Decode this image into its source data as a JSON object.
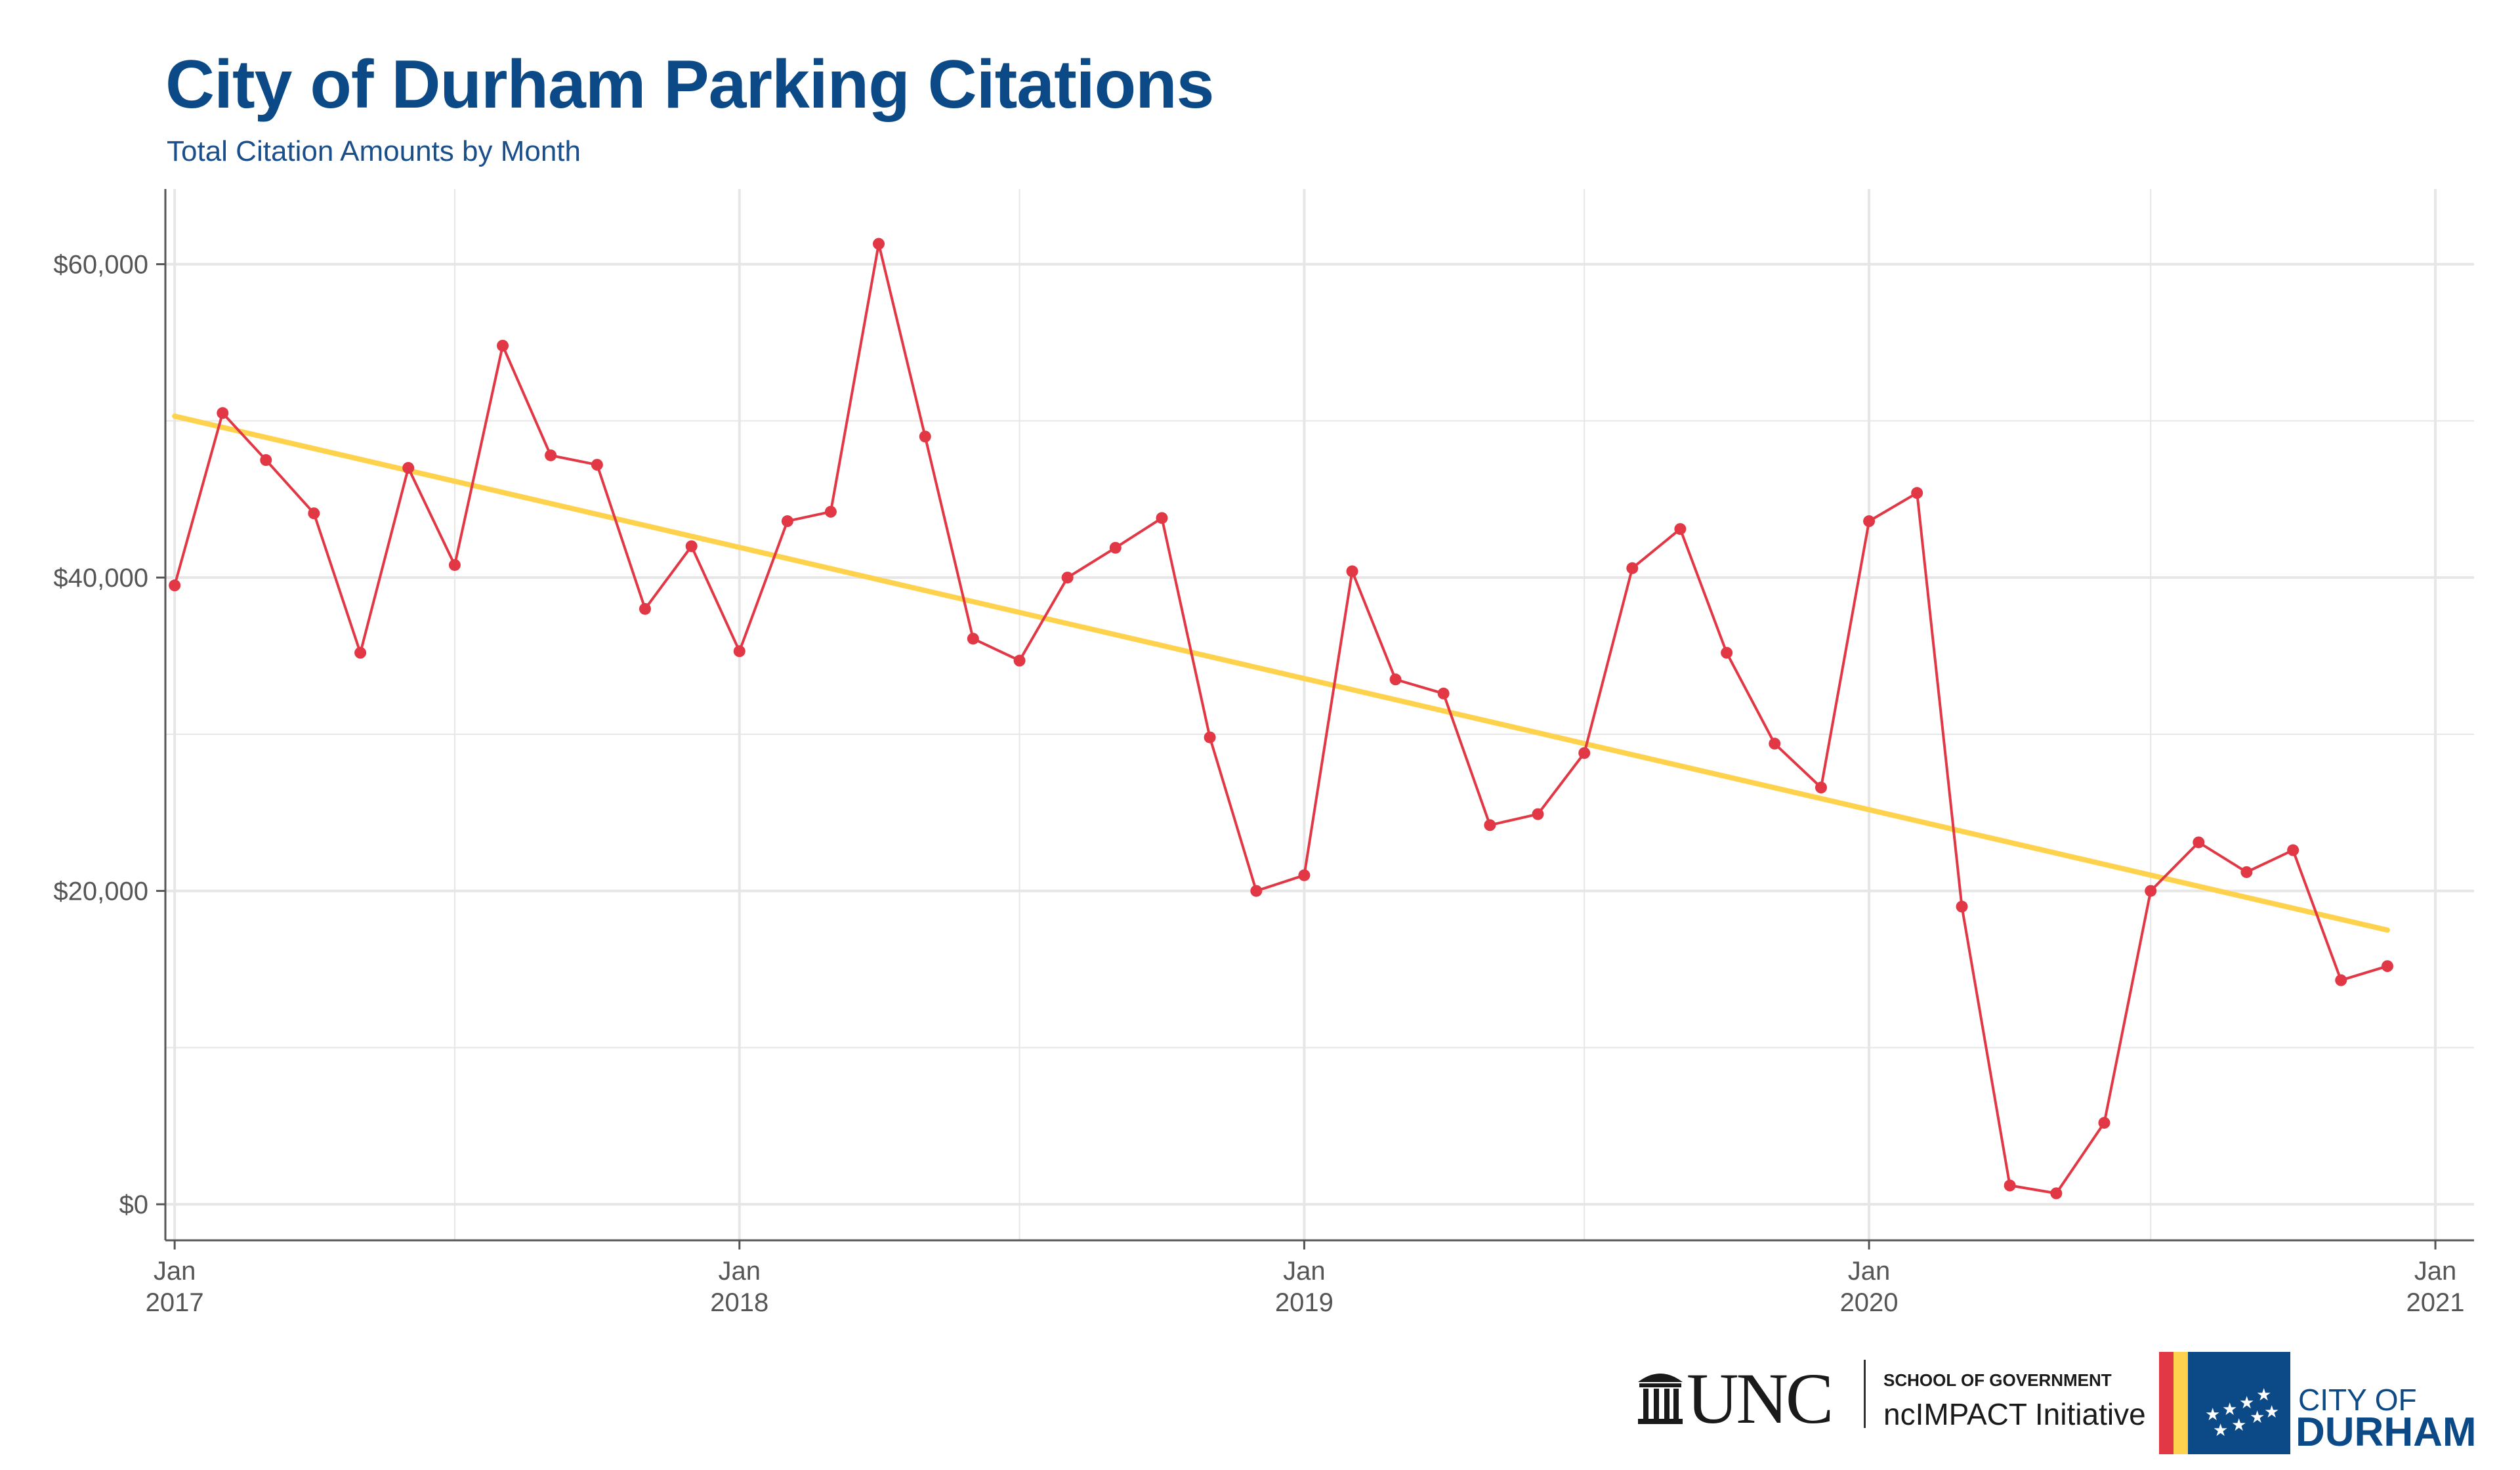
{
  "header": {
    "title": "City of Durham Parking Citations",
    "subtitle": "Total Citation Amounts by Month"
  },
  "colors": {
    "title": "#0b4a86",
    "series": "#e23744",
    "trend": "#ffd24d",
    "grid": "#e6e6e6"
  },
  "chart_data": {
    "type": "line",
    "title": "City of Durham Parking Citations",
    "subtitle": "Total Citation Amounts by Month",
    "xlabel": "",
    "ylabel": "",
    "x": [
      "2017-01",
      "2017-02",
      "2017-03",
      "2017-04",
      "2017-05",
      "2017-06",
      "2017-07",
      "2017-08",
      "2017-09",
      "2017-10",
      "2017-11",
      "2017-12",
      "2018-01",
      "2018-02",
      "2018-03",
      "2018-04",
      "2018-05",
      "2018-06",
      "2018-07",
      "2018-08",
      "2018-09",
      "2018-10",
      "2018-11",
      "2018-12",
      "2019-01",
      "2019-02",
      "2019-03",
      "2019-04",
      "2019-05",
      "2019-06",
      "2019-07",
      "2019-08",
      "2019-09",
      "2019-10",
      "2019-11",
      "2019-12",
      "2020-01",
      "2020-02",
      "2020-03",
      "2020-04",
      "2020-05",
      "2020-06",
      "2020-07",
      "2020-08",
      "2020-09",
      "2020-10",
      "2020-11",
      "2020-12"
    ],
    "series": [
      {
        "values": [
          39500,
          50500,
          47500,
          44100,
          35200,
          47000,
          40800,
          54800,
          47800,
          47200,
          38000,
          42000,
          35300,
          43600,
          44200,
          61300,
          49000,
          36100,
          34700,
          40000,
          41900,
          43800,
          29800,
          20000,
          21000,
          40400,
          33500,
          32600,
          24200,
          24900,
          28800,
          40600,
          43100,
          35200,
          29400,
          26600,
          43600,
          45400,
          19000,
          1200,
          700,
          5200,
          20000,
          23100,
          21200,
          22600,
          14300,
          15200
        ]
      }
    ],
    "trend": {
      "start": [
        "2017-01",
        50300
      ],
      "end": [
        "2020-12",
        17500
      ]
    },
    "y_ticks": [
      "$0",
      "$20,000",
      "$40,000",
      "$60,000"
    ],
    "x_ticks": [
      {
        "month": "Jan",
        "year": "2017"
      },
      {
        "month": "Jan",
        "year": "2018"
      },
      {
        "month": "Jan",
        "year": "2019"
      },
      {
        "month": "Jan",
        "year": "2020"
      },
      {
        "month": "Jan",
        "year": "2021"
      }
    ],
    "ylim": [
      -2300,
      64800
    ],
    "xlim": [
      "2016-12-26",
      "2021-01-26"
    ],
    "grid": true,
    "legend": "none"
  },
  "logos": {
    "school_of_government": "SCHOOL OF GOVERNMENT",
    "ncimpact": "ncIMPACT Initiative",
    "city_of": "CITY OF",
    "durham": "DURHAM"
  }
}
